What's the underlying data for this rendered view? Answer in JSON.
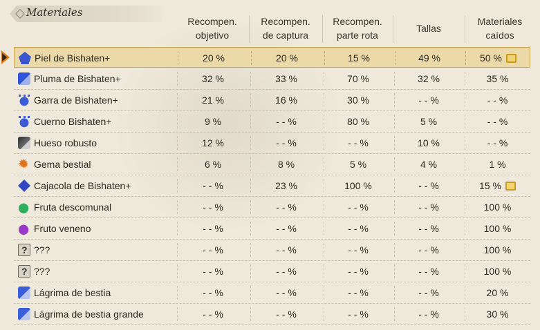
{
  "section": {
    "title": "Materiales"
  },
  "columns": [
    {
      "key": "objetivo",
      "label": "Recompen.\nobjetivo"
    },
    {
      "key": "captura",
      "label": "Recompen.\nde captura"
    },
    {
      "key": "parte_rota",
      "label": "Recompen.\nparte rota"
    },
    {
      "key": "tallas",
      "label": "Tallas"
    },
    {
      "key": "caidos",
      "label": "Materiales\ncaídos"
    }
  ],
  "rows": [
    {
      "name": "Piel de Bishaten+",
      "icon": "diamond-material-icon",
      "values": [
        "20 %",
        "20 %",
        "15 %",
        "49 %",
        "50 %"
      ],
      "note": true,
      "selected": true
    },
    {
      "name": "Pluma de Bishaten+",
      "icon": "feather-icon",
      "values": [
        "32 %",
        "33 %",
        "70 %",
        "32 %",
        "35 %"
      ],
      "note": false,
      "selected": false
    },
    {
      "name": "Garra de Bishaten+",
      "icon": "claw-icon",
      "values": [
        "21 %",
        "16 %",
        "30 %",
        "- - %",
        "- - %"
      ],
      "note": false,
      "selected": false
    },
    {
      "name": "Cuerno Bishaten+",
      "icon": "claw-icon",
      "values": [
        "9 %",
        "- - %",
        "80 %",
        "5 %",
        "- - %"
      ],
      "note": false,
      "selected": false
    },
    {
      "name": "Hueso robusto",
      "icon": "bone-icon",
      "values": [
        "12 %",
        "- - %",
        "- - %",
        "10 %",
        "- - %"
      ],
      "note": false,
      "selected": false
    },
    {
      "name": "Gema bestial",
      "icon": "gem-icon",
      "values": [
        "6 %",
        "8 %",
        "5 %",
        "4 %",
        "1 %"
      ],
      "note": false,
      "selected": false
    },
    {
      "name": "Cajacola de Bishaten+",
      "icon": "tail-icon",
      "values": [
        "- - %",
        "23 %",
        "100 %",
        "- - %",
        "15 %"
      ],
      "note": true,
      "selected": false
    },
    {
      "name": "Fruta descomunal",
      "icon": "green-fruit-icon",
      "values": [
        "- - %",
        "- - %",
        "- - %",
        "- - %",
        "100 %"
      ],
      "note": false,
      "selected": false
    },
    {
      "name": "Fruto veneno",
      "icon": "purple-fruit-icon",
      "values": [
        "- - %",
        "- - %",
        "- - %",
        "- - %",
        "100 %"
      ],
      "note": false,
      "selected": false
    },
    {
      "name": "???",
      "icon": "unknown-item-icon",
      "values": [
        "- - %",
        "- - %",
        "- - %",
        "- - %",
        "100 %"
      ],
      "note": false,
      "selected": false
    },
    {
      "name": "???",
      "icon": "unknown-item-icon",
      "values": [
        "- - %",
        "- - %",
        "- - %",
        "- - %",
        "100 %"
      ],
      "note": false,
      "selected": false
    },
    {
      "name": "Lágrima de bestia",
      "icon": "tear-icon",
      "values": [
        "- - %",
        "- - %",
        "- - %",
        "- - %",
        "20 %"
      ],
      "note": false,
      "selected": false
    },
    {
      "name": "Lágrima de bestia grande",
      "icon": "tear-icon",
      "values": [
        "- - %",
        "- - %",
        "- - %",
        "- - %",
        "30 %"
      ],
      "note": false,
      "selected": false
    }
  ],
  "colors": {
    "selected_bg": "#ecd9a8",
    "cursor": "#e07a16",
    "background": "#efe9dc"
  }
}
